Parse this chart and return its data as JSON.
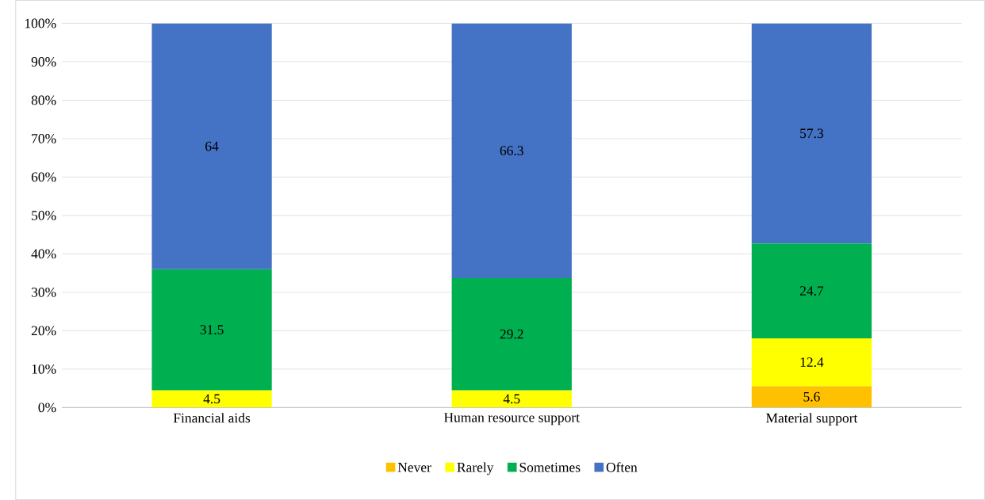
{
  "chart_data": {
    "type": "bar",
    "stacked": true,
    "categories": [
      "Financial aids",
      "Human resource support",
      "Material support"
    ],
    "series": [
      {
        "name": "Never",
        "color": "#ffc000",
        "values": [
          null,
          null,
          5.6
        ]
      },
      {
        "name": "Rarely",
        "color": "#ffff00",
        "values": [
          4.5,
          4.5,
          12.4
        ]
      },
      {
        "name": "Sometimes",
        "color": "#00b050",
        "values": [
          31.5,
          29.2,
          24.7
        ]
      },
      {
        "name": "Often",
        "color": "#4472c4",
        "values": [
          64,
          66.3,
          57.3
        ]
      }
    ],
    "ylim": [
      0,
      100
    ],
    "yticks": [
      {
        "value": 0,
        "label": "0%"
      },
      {
        "value": 10,
        "label": "10%"
      },
      {
        "value": 20,
        "label": "20%"
      },
      {
        "value": 30,
        "label": "30%"
      },
      {
        "value": 40,
        "label": "40%"
      },
      {
        "value": 50,
        "label": "50%"
      },
      {
        "value": 60,
        "label": "60%"
      },
      {
        "value": 70,
        "label": "70%"
      },
      {
        "value": 80,
        "label": "80%"
      },
      {
        "value": 90,
        "label": "90%"
      },
      {
        "value": 100,
        "label": "100%"
      }
    ],
    "grid": "y",
    "legend": "bottom",
    "data_labels": true
  }
}
